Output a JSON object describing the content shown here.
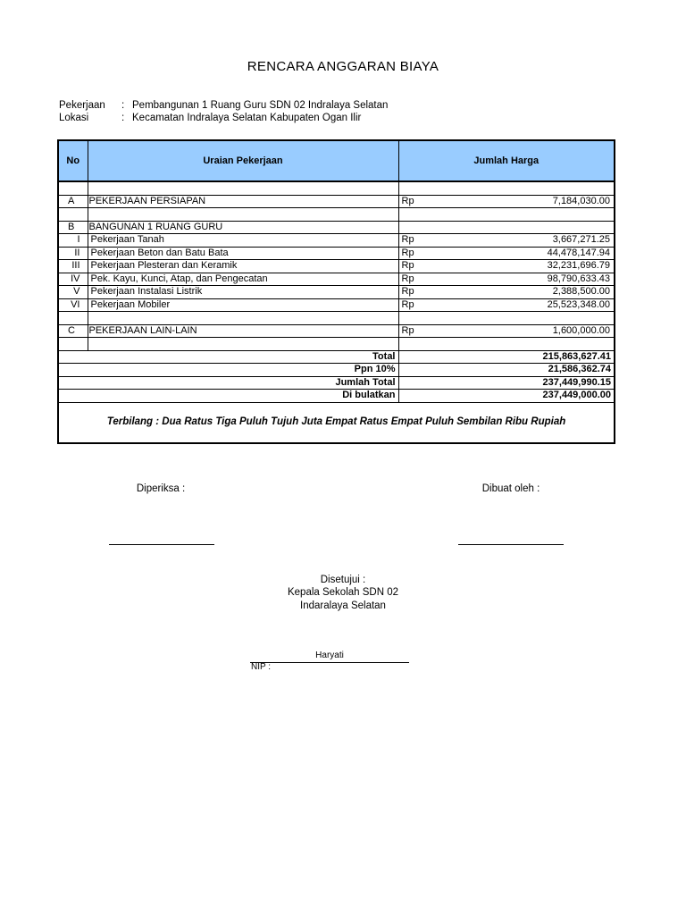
{
  "title": "RENCARA ANGGARAN BIAYA",
  "info": [
    {
      "label": "Pekerjaan",
      "value": "Pembangunan 1 Ruang Guru SDN 02 Indralaya Selatan"
    },
    {
      "label": "Lokasi",
      "value": "Kecamatan Indralaya Selatan Kabupaten Ogan Ilir"
    }
  ],
  "separator": ":",
  "headers": {
    "no": "No",
    "uraian": "Uraian Pekerjaan",
    "jumlah": "Jumlah Harga"
  },
  "currency": "Rp",
  "rows": [
    {
      "no": "",
      "desc": "",
      "rp": "",
      "value": ""
    },
    {
      "no": "A",
      "desc": "PEKERJAAN PERSIAPAN",
      "rp": "Rp",
      "value": "7,184,030.00"
    },
    {
      "no": "",
      "desc": "",
      "rp": "",
      "value": ""
    },
    {
      "no": "B",
      "desc": "BANGUNAN 1 RUANG GURU",
      "rp": "",
      "value": ""
    },
    {
      "no": "I",
      "desc": "Pekerjaan Tanah",
      "rp": "Rp",
      "value": "3,667,271.25"
    },
    {
      "no": "II",
      "desc": "Pekerjaan Beton dan Batu Bata",
      "rp": "Rp",
      "value": "44,478,147.94"
    },
    {
      "no": "III",
      "desc": "Pekerjaan Plesteran dan Keramik",
      "rp": "Rp",
      "value": "32,231,696.79"
    },
    {
      "no": "IV",
      "desc": "Pek. Kayu, Kunci, Atap, dan Pengecatan",
      "rp": "Rp",
      "value": "98,790,633.43"
    },
    {
      "no": "V",
      "desc": "Pekerjaan Instalasi Listrik",
      "rp": "Rp",
      "value": "2,388,500.00"
    },
    {
      "no": "VI",
      "desc": "Pekerjaan Mobiler",
      "rp": "Rp",
      "value": "25,523,348.00"
    },
    {
      "no": "",
      "desc": "",
      "rp": "",
      "value": ""
    },
    {
      "no": "C",
      "desc": "PEKERJAAN LAIN-LAIN",
      "rp": "Rp",
      "value": "1,600,000.00"
    },
    {
      "no": "",
      "desc": "",
      "rp": "",
      "value": ""
    }
  ],
  "totals": [
    {
      "label": "Total",
      "value": "215,863,627.41"
    },
    {
      "label": "Ppn 10%",
      "value": "21,586,362.74"
    },
    {
      "label": "Jumlah Total",
      "value": "237,449,990.15"
    },
    {
      "label": "Di bulatkan",
      "value": "237,449,000.00"
    }
  ],
  "terbilang": "Terbilang :  Dua Ratus Tiga Puluh Tujuh Juta Empat Ratus Empat Puluh Sembilan Ribu Rupiah",
  "signatures": {
    "diperiksa": "Diperiksa :",
    "dibuat": "Dibuat oleh :",
    "disetujui": "Disetujui :",
    "jabatan1": "Kepala Sekolah SDN 02",
    "jabatan2": "Indaralaya Selatan",
    "nama": "Haryati",
    "nip": "NIP :"
  },
  "colors": {
    "header_bg": "#99ccff"
  }
}
